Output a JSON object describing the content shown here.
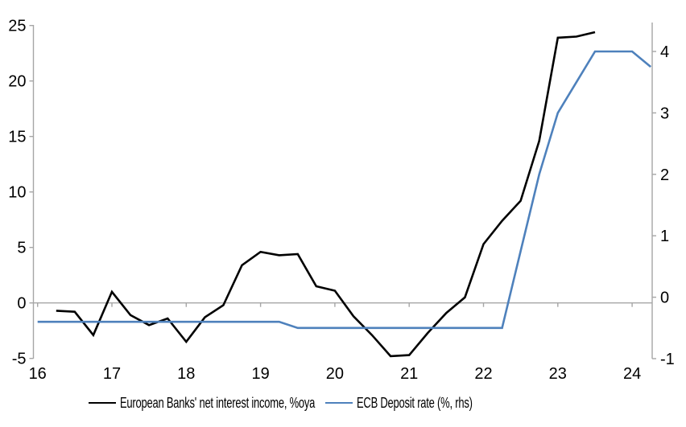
{
  "chart_data": {
    "type": "line",
    "title": "",
    "x_axis": {
      "tick_labels": [
        "16",
        "17",
        "18",
        "19",
        "20",
        "21",
        "22",
        "23",
        "24"
      ],
      "unit": "year, quarterly observations starting 2016Q1"
    },
    "left_axis": {
      "ticks": [
        -5,
        0,
        5,
        10,
        15,
        20,
        25
      ],
      "range": [
        -5,
        25
      ],
      "applies_to": "European Banks' net interest income, %oya"
    },
    "right_axis": {
      "ticks": [
        -1,
        0,
        1,
        2,
        3,
        4
      ],
      "range": [
        -1,
        4.45
      ],
      "applies_to": "ECB Deposit rate (%, rhs)"
    },
    "series": [
      {
        "name": "European Banks' net interest income, %oya",
        "axis": "left",
        "color": "#000000",
        "start": "2016Q2",
        "start_quarter_index": 1,
        "values": [
          -0.7,
          -0.8,
          -2.9,
          1.0,
          -1.1,
          -2.0,
          -1.4,
          -3.5,
          -1.3,
          -0.2,
          3.4,
          4.6,
          4.3,
          4.4,
          1.5,
          1.1,
          -1.2,
          -2.9,
          -4.8,
          -4.7,
          -2.7,
          -0.9,
          0.5,
          5.3,
          7.4,
          9.2,
          14.6,
          23.9,
          24.0,
          24.4
        ]
      },
      {
        "name": "ECB Deposit rate (%, rhs)",
        "axis": "right",
        "color": "#4E81BC",
        "start": "2016Q1",
        "start_quarter_index": 0,
        "values": [
          -0.4,
          -0.4,
          -0.4,
          -0.4,
          -0.4,
          -0.4,
          -0.4,
          -0.4,
          -0.4,
          -0.4,
          -0.4,
          -0.4,
          -0.4,
          -0.4,
          -0.5,
          -0.5,
          -0.5,
          -0.5,
          -0.5,
          -0.5,
          -0.5,
          -0.5,
          -0.5,
          -0.5,
          -0.5,
          -0.5,
          0.75,
          2.0,
          3.0,
          3.5,
          4.0,
          4.0,
          4.0,
          3.75
        ]
      }
    ],
    "legend": [
      {
        "label": "European Banks' net interest income, %oya",
        "color": "#000000"
      },
      {
        "label": "ECB Deposit rate (%, rhs)",
        "color": "#4E81BC"
      }
    ],
    "grid": "zero line only",
    "legend_position": "bottom"
  },
  "colors": {
    "background": "#FFFFFF",
    "axis_gray": "#A6A6A6",
    "text": "#000000"
  }
}
